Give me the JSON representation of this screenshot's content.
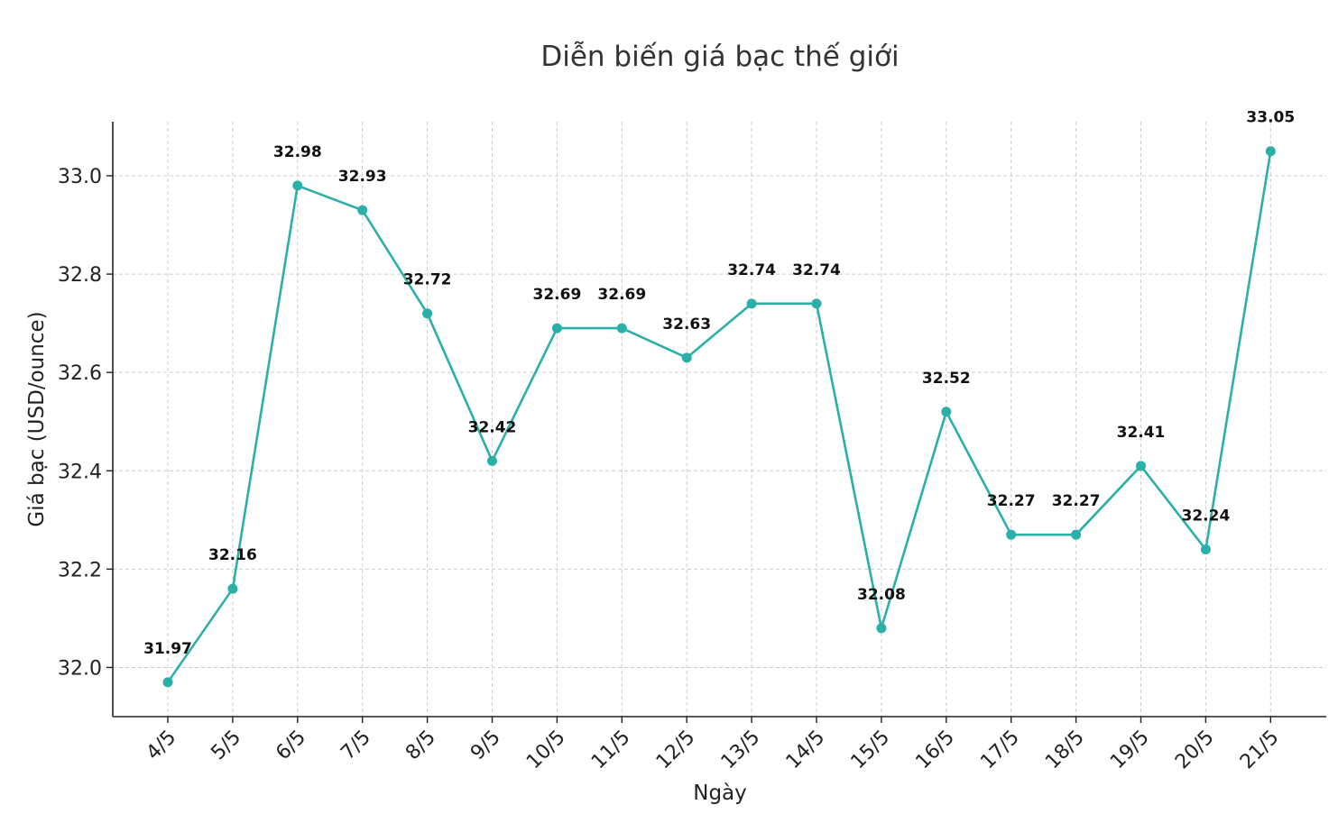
{
  "chart_data": {
    "type": "line",
    "title": "Diễn biến giá bạc thế giới",
    "xlabel": "Ngày",
    "ylabel": "Giá bạc (USD/ounce)",
    "categories": [
      "4/5",
      "5/5",
      "6/5",
      "7/5",
      "8/5",
      "9/5",
      "10/5",
      "11/5",
      "12/5",
      "13/5",
      "14/5",
      "15/5",
      "16/5",
      "17/5",
      "18/5",
      "19/5",
      "20/5",
      "21/5"
    ],
    "values": [
      31.97,
      32.16,
      32.98,
      32.93,
      32.72,
      32.42,
      32.69,
      32.69,
      32.63,
      32.74,
      32.74,
      32.08,
      32.52,
      32.27,
      32.27,
      32.41,
      32.24,
      33.05
    ],
    "data_labels": [
      "31.97",
      "32.16",
      "32.98",
      "32.93",
      "32.72",
      "32.42",
      "32.69",
      "32.69",
      "32.63",
      "32.74",
      "32.74",
      "32.08",
      "32.52",
      "32.27",
      "32.27",
      "32.41",
      "32.24",
      "33.05"
    ],
    "yticks": [
      "32.0",
      "32.2",
      "32.4",
      "32.6",
      "32.8",
      "33.0"
    ],
    "ytick_values": [
      32.0,
      32.2,
      32.4,
      32.6,
      32.8,
      33.0
    ],
    "ylim": [
      31.9,
      33.11
    ],
    "grid": true,
    "color": "#2ab0a8"
  }
}
